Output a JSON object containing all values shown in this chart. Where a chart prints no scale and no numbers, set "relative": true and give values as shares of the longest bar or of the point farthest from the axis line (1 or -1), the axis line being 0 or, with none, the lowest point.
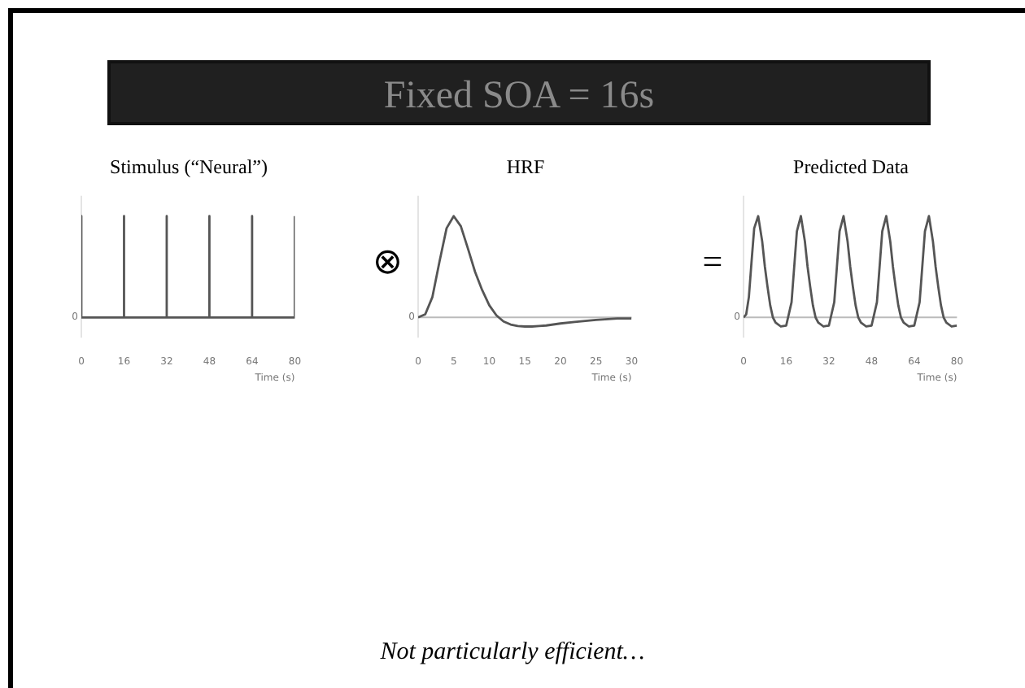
{
  "chart_data": [
    {
      "type": "line",
      "title": "Stimulus (“Neural”)",
      "xlabel": "Time (s)",
      "relative": true,
      "xlim": [
        0,
        80
      ],
      "xticks": [
        0,
        16,
        32,
        48,
        64,
        80
      ],
      "grid": false,
      "legend": false,
      "annotations": [
        "Fixed SOA = 16s",
        "⊗",
        {
          "text": "0",
          "y": 0
        }
      ],
      "series": [
        {
          "color": "#555555",
          "x": [
            0,
            0,
            16,
            16,
            16,
            32,
            32,
            32,
            48,
            48,
            48,
            64,
            64,
            64,
            80,
            80
          ],
          "values": [
            1,
            0,
            0,
            1,
            0,
            0,
            1,
            0,
            0,
            1,
            0,
            0,
            1,
            0,
            0,
            1
          ]
        }
      ]
    },
    {
      "type": "line",
      "title": "HRF",
      "xlabel": "Time (s)",
      "relative": true,
      "xlim": [
        0,
        30
      ],
      "xticks": [
        0,
        5,
        10,
        15,
        20,
        25,
        30
      ],
      "grid": false,
      "legend": false,
      "annotations": [
        "=",
        {
          "text": "0",
          "y": 0
        }
      ],
      "series": [
        {
          "color": "#555555",
          "x": [
            0,
            1,
            2,
            3,
            4,
            5,
            6,
            7,
            8,
            9,
            10,
            11,
            12,
            13,
            14,
            15,
            16,
            17,
            18,
            20,
            22,
            25,
            28,
            30
          ],
          "values": [
            0,
            0.03,
            0.2,
            0.55,
            0.88,
            1,
            0.9,
            0.68,
            0.45,
            0.27,
            0.12,
            0.02,
            -0.04,
            -0.07,
            -0.085,
            -0.09,
            -0.09,
            -0.085,
            -0.08,
            -0.06,
            -0.045,
            -0.025,
            -0.01,
            -0.01
          ]
        }
      ]
    },
    {
      "type": "line",
      "title": "Predicted Data",
      "xlabel": "Time (s)",
      "relative": true,
      "xlim": [
        0,
        80
      ],
      "xticks": [
        0,
        16,
        32,
        48,
        64,
        80
      ],
      "grid": false,
      "legend": false,
      "annotations": [
        "Not particularly efficient…",
        {
          "text": "0",
          "y": 0
        }
      ],
      "series": [
        {
          "color": "#555555",
          "x": [
            0,
            1,
            2,
            3,
            4,
            5.5,
            7,
            8,
            9,
            10,
            11,
            12,
            14,
            16,
            18,
            19,
            20,
            21.5,
            23,
            24,
            25,
            26,
            27,
            28,
            30,
            32,
            34,
            35,
            36,
            37.5,
            39,
            40,
            41,
            42,
            43,
            44,
            46,
            48,
            50,
            51,
            52,
            53.5,
            55,
            56,
            57,
            58,
            59,
            60,
            62,
            64,
            66,
            67,
            68,
            69.5,
            71,
            72,
            73,
            74,
            75,
            76,
            78,
            80
          ],
          "values": [
            0,
            0.03,
            0.2,
            0.55,
            0.88,
            1,
            0.75,
            0.5,
            0.3,
            0.12,
            0,
            -0.05,
            -0.09,
            -0.08,
            0.15,
            0.5,
            0.85,
            1,
            0.75,
            0.5,
            0.3,
            0.12,
            0,
            -0.05,
            -0.09,
            -0.08,
            0.15,
            0.5,
            0.85,
            1,
            0.75,
            0.5,
            0.3,
            0.12,
            0,
            -0.05,
            -0.09,
            -0.08,
            0.15,
            0.5,
            0.85,
            1,
            0.75,
            0.5,
            0.3,
            0.12,
            0,
            -0.05,
            -0.09,
            -0.08,
            0.15,
            0.5,
            0.85,
            1,
            0.75,
            0.5,
            0.3,
            0.12,
            0,
            -0.05,
            -0.09,
            -0.08
          ]
        }
      ]
    }
  ]
}
